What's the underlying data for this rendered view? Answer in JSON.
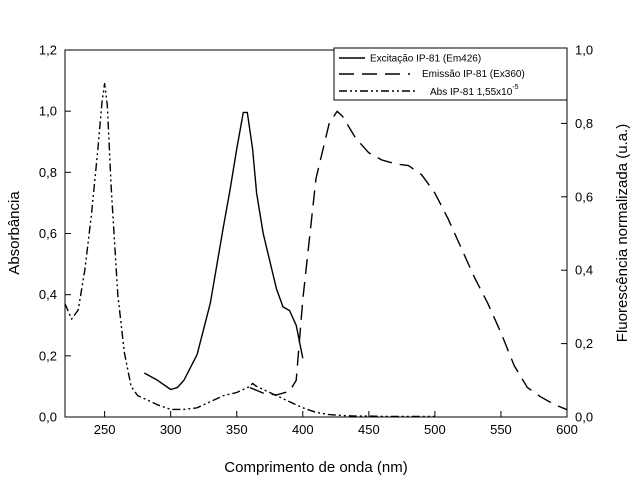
{
  "chart_data": {
    "type": "line",
    "xlabel": "Comprimento de onda (nm)",
    "ylabel_left": "Absorbância",
    "ylabel_right": "Fluorescência normalizada (u.a.)",
    "xlim": [
      220,
      600
    ],
    "ylim_left": [
      0,
      1.2
    ],
    "ylim_right": [
      0,
      1.0
    ],
    "x_ticks": [
      "250",
      "300",
      "350",
      "400",
      "450",
      "500",
      "550",
      "600"
    ],
    "y_left_ticks": [
      "0,0",
      "0,2",
      "0,4",
      "0,6",
      "0,8",
      "1,0",
      "1,2"
    ],
    "y_right_ticks": [
      "0,0",
      "0,2",
      "0,4",
      "0,6",
      "0,8",
      "1,0"
    ],
    "grid": false,
    "legend_position": "top-right",
    "series": [
      {
        "name": "Excitação IP-81 (Em426)",
        "axis": "right",
        "style": "solid",
        "x": [
          280,
          290,
          300,
          305,
          310,
          320,
          330,
          340,
          345,
          350,
          355,
          358,
          362,
          365,
          370,
          380,
          385,
          390,
          395,
          400
        ],
        "y": [
          0.12,
          0.1,
          0.075,
          0.08,
          0.1,
          0.17,
          0.31,
          0.52,
          0.62,
          0.73,
          0.83,
          0.83,
          0.73,
          0.61,
          0.5,
          0.35,
          0.3,
          0.29,
          0.25,
          0.16
        ]
      },
      {
        "name": "Emissão IP-81 (Ex360)",
        "axis": "right",
        "style": "dashed",
        "x": [
          360,
          370,
          380,
          390,
          395,
          400,
          410,
          420,
          426,
          430,
          440,
          450,
          460,
          470,
          480,
          490,
          500,
          510,
          520,
          530,
          540,
          550,
          560,
          570,
          580,
          590,
          600
        ],
        "y": [
          0.08,
          0.065,
          0.06,
          0.07,
          0.1,
          0.32,
          0.65,
          0.8,
          0.833,
          0.82,
          0.76,
          0.72,
          0.7,
          0.69,
          0.685,
          0.66,
          0.61,
          0.54,
          0.46,
          0.38,
          0.31,
          0.23,
          0.14,
          0.08,
          0.055,
          0.035,
          0.02
        ]
      },
      {
        "name": "Abs IP-81 1,55x10",
        "name_superscript": "-5",
        "axis": "left",
        "style": "dashdotdot",
        "x": [
          220,
          225,
          230,
          235,
          240,
          245,
          248,
          250,
          252,
          255,
          260,
          265,
          270,
          275,
          280,
          290,
          300,
          310,
          320,
          330,
          340,
          350,
          355,
          360,
          362,
          365,
          370,
          380,
          390,
          400,
          410,
          420,
          430,
          440,
          450,
          460,
          470,
          480,
          490,
          500
        ],
        "y": [
          0.37,
          0.32,
          0.35,
          0.48,
          0.66,
          0.88,
          1.03,
          1.09,
          1.02,
          0.75,
          0.4,
          0.21,
          0.1,
          0.07,
          0.06,
          0.04,
          0.025,
          0.025,
          0.03,
          0.05,
          0.07,
          0.08,
          0.09,
          0.1,
          0.11,
          0.1,
          0.09,
          0.07,
          0.05,
          0.03,
          0.015,
          0.008,
          0.005,
          0.003,
          0.003,
          0.002,
          0.002,
          0.002,
          0.002,
          0.002
        ]
      }
    ]
  }
}
